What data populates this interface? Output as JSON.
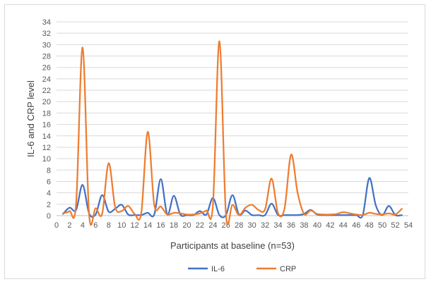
{
  "chart_data": {
    "type": "line",
    "title": "",
    "xlabel": "Participants at baseline (n=53)",
    "ylabel": "IL-6 and CRP level",
    "xlim": [
      0,
      54
    ],
    "ylim": [
      0,
      34
    ],
    "x_ticks": [
      0,
      2,
      4,
      6,
      8,
      10,
      12,
      14,
      16,
      18,
      20,
      22,
      24,
      26,
      28,
      30,
      32,
      34,
      36,
      38,
      40,
      42,
      44,
      46,
      48,
      50,
      52,
      54
    ],
    "y_ticks": [
      0,
      2,
      4,
      6,
      8,
      10,
      12,
      14,
      16,
      18,
      20,
      22,
      24,
      26,
      28,
      30,
      32,
      34
    ],
    "grid": "horizontal",
    "legend_position": "bottom",
    "x": [
      1,
      2,
      3,
      4,
      5,
      6,
      7,
      8,
      9,
      10,
      11,
      12,
      13,
      14,
      15,
      16,
      17,
      18,
      19,
      20,
      21,
      22,
      23,
      24,
      25,
      26,
      27,
      28,
      29,
      30,
      31,
      32,
      33,
      34,
      35,
      36,
      37,
      38,
      39,
      40,
      41,
      42,
      43,
      44,
      45,
      46,
      47,
      48,
      49,
      50,
      51,
      52,
      53
    ],
    "series": [
      {
        "name": "IL-6",
        "color": "#4472C4",
        "values": [
          0.3,
          1.4,
          1.0,
          5.4,
          0.4,
          0.2,
          3.6,
          0.7,
          1.2,
          1.9,
          0.2,
          0.1,
          0.1,
          0.5,
          0.2,
          6.4,
          0.2,
          3.5,
          0.2,
          0.1,
          0.1,
          0.8,
          0.2,
          3.1,
          0.1,
          0.1,
          3.6,
          0.2,
          0.9,
          0.1,
          0.1,
          0.1,
          2.1,
          0.1,
          0.1,
          0.1,
          0.1,
          0.3,
          1.0,
          0.2,
          0.1,
          0.1,
          0.1,
          0.1,
          0.1,
          0.1,
          0.1,
          6.6,
          1.8,
          0.1,
          1.7,
          0.1,
          0.1
        ]
      },
      {
        "name": "CRP",
        "color": "#ED7D31",
        "values": [
          0.4,
          0.8,
          2.0,
          29.5,
          0.2,
          1.3,
          0.3,
          9.2,
          1.5,
          0.8,
          1.7,
          0.3,
          0.4,
          14.7,
          1.9,
          1.6,
          0.2,
          0.5,
          0.4,
          0.2,
          0.2,
          0.4,
          0.9,
          1.8,
          30.6,
          0.2,
          1.9,
          0.1,
          1.4,
          1.9,
          1.0,
          1.1,
          6.5,
          0.4,
          1.3,
          10.7,
          4.0,
          0.3,
          0.9,
          0.3,
          0.2,
          0.2,
          0.3,
          0.6,
          0.4,
          0.2,
          0.1,
          0.5,
          0.3,
          0.2,
          0.4,
          0.2,
          1.2
        ]
      }
    ]
  }
}
